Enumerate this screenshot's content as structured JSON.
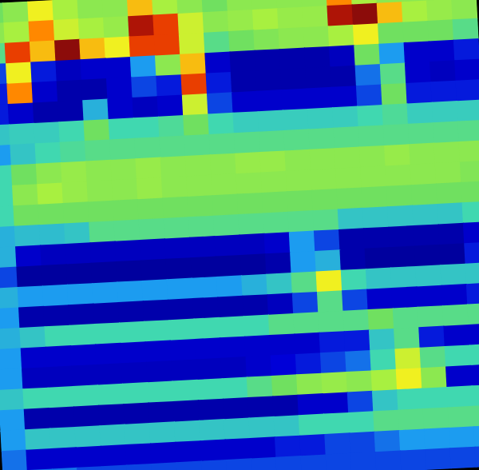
{
  "chart_data": {
    "type": "heatmap",
    "tick_labels": false,
    "zlim": [
      0,
      1
    ],
    "cells": [
      [
        0.55,
        0.6,
        0.75,
        0.65,
        0.6,
        0.6,
        0.8,
        0.65,
        0.6,
        0.55,
        0.6,
        0.6,
        0.6,
        0.6,
        0.85,
        0.65,
        0.6,
        0.6,
        0.6,
        0.6
      ],
      [
        0.6,
        0.65,
        0.85,
        0.7,
        0.65,
        0.62,
        0.95,
        0.9,
        0.7,
        0.6,
        0.62,
        0.65,
        0.62,
        0.62,
        0.95,
        0.97,
        0.8,
        0.65,
        0.62,
        0.6
      ],
      [
        0.5,
        0.9,
        0.8,
        0.97,
        0.8,
        0.75,
        0.9,
        0.9,
        0.7,
        0.5,
        0.55,
        0.58,
        0.6,
        0.6,
        0.65,
        0.75,
        0.55,
        0.55,
        0.55,
        0.5
      ],
      [
        0.2,
        0.75,
        0.15,
        0.08,
        0.1,
        0.1,
        0.3,
        0.6,
        0.8,
        0.1,
        0.05,
        0.05,
        0.05,
        0.05,
        0.08,
        0.55,
        0.3,
        0.1,
        0.1,
        0.15
      ],
      [
        0.15,
        0.85,
        0.1,
        0.05,
        0.05,
        0.1,
        0.2,
        0.15,
        0.9,
        0.15,
        0.05,
        0.05,
        0.05,
        0.05,
        0.05,
        0.25,
        0.5,
        0.1,
        0.08,
        0.1
      ],
      [
        0.15,
        0.1,
        0.05,
        0.05,
        0.35,
        0.1,
        0.08,
        0.1,
        0.7,
        0.2,
        0.1,
        0.1,
        0.1,
        0.1,
        0.1,
        0.2,
        0.55,
        0.15,
        0.15,
        0.15
      ],
      [
        0.4,
        0.42,
        0.42,
        0.45,
        0.55,
        0.45,
        0.45,
        0.48,
        0.55,
        0.45,
        0.42,
        0.42,
        0.42,
        0.42,
        0.42,
        0.45,
        0.48,
        0.42,
        0.42,
        0.42
      ],
      [
        0.3,
        0.4,
        0.45,
        0.48,
        0.5,
        0.5,
        0.5,
        0.5,
        0.5,
        0.5,
        0.5,
        0.5,
        0.5,
        0.5,
        0.5,
        0.5,
        0.5,
        0.5,
        0.5,
        0.5
      ],
      [
        0.45,
        0.55,
        0.6,
        0.62,
        0.6,
        0.6,
        0.62,
        0.6,
        0.6,
        0.6,
        0.62,
        0.62,
        0.6,
        0.6,
        0.6,
        0.6,
        0.62,
        0.6,
        0.6,
        0.6
      ],
      [
        0.45,
        0.6,
        0.65,
        0.62,
        0.6,
        0.6,
        0.62,
        0.6,
        0.6,
        0.6,
        0.6,
        0.6,
        0.6,
        0.6,
        0.6,
        0.6,
        0.6,
        0.6,
        0.6,
        0.58
      ],
      [
        0.45,
        0.55,
        0.55,
        0.55,
        0.55,
        0.55,
        0.55,
        0.55,
        0.55,
        0.55,
        0.55,
        0.55,
        0.55,
        0.55,
        0.55,
        0.55,
        0.55,
        0.55,
        0.55,
        0.55
      ],
      [
        0.35,
        0.38,
        0.38,
        0.4,
        0.5,
        0.5,
        0.5,
        0.5,
        0.5,
        0.5,
        0.5,
        0.5,
        0.5,
        0.5,
        0.4,
        0.4,
        0.4,
        0.4,
        0.4,
        0.45
      ],
      [
        0.35,
        0.1,
        0.08,
        0.08,
        0.08,
        0.08,
        0.08,
        0.08,
        0.08,
        0.08,
        0.08,
        0.1,
        0.3,
        0.2,
        0.05,
        0.05,
        0.05,
        0.05,
        0.05,
        0.1
      ],
      [
        0.2,
        0.03,
        0.03,
        0.03,
        0.03,
        0.03,
        0.03,
        0.03,
        0.03,
        0.03,
        0.03,
        0.05,
        0.3,
        0.35,
        0.05,
        0.03,
        0.03,
        0.03,
        0.03,
        0.15
      ],
      [
        0.35,
        0.3,
        0.3,
        0.3,
        0.3,
        0.3,
        0.3,
        0.3,
        0.3,
        0.3,
        0.35,
        0.4,
        0.5,
        0.75,
        0.45,
        0.4,
        0.4,
        0.4,
        0.4,
        0.4
      ],
      [
        0.3,
        0.05,
        0.05,
        0.05,
        0.05,
        0.05,
        0.05,
        0.05,
        0.05,
        0.05,
        0.05,
        0.08,
        0.2,
        0.5,
        0.2,
        0.1,
        0.1,
        0.1,
        0.1,
        0.15
      ],
      [
        0.35,
        0.4,
        0.45,
        0.45,
        0.45,
        0.45,
        0.45,
        0.45,
        0.45,
        0.45,
        0.45,
        0.5,
        0.5,
        0.5,
        0.5,
        0.55,
        0.5,
        0.5,
        0.5,
        0.5
      ],
      [
        0.3,
        0.1,
        0.1,
        0.1,
        0.1,
        0.1,
        0.1,
        0.1,
        0.1,
        0.1,
        0.1,
        0.1,
        0.1,
        0.15,
        0.15,
        0.4,
        0.5,
        0.15,
        0.1,
        0.1
      ],
      [
        0.3,
        0.08,
        0.08,
        0.08,
        0.08,
        0.08,
        0.08,
        0.08,
        0.08,
        0.08,
        0.1,
        0.12,
        0.15,
        0.2,
        0.25,
        0.45,
        0.7,
        0.5,
        0.45,
        0.45
      ],
      [
        0.4,
        0.45,
        0.45,
        0.45,
        0.45,
        0.45,
        0.45,
        0.45,
        0.45,
        0.45,
        0.5,
        0.55,
        0.6,
        0.62,
        0.6,
        0.65,
        0.75,
        0.6,
        0.1,
        0.1
      ],
      [
        0.3,
        0.05,
        0.05,
        0.05,
        0.05,
        0.05,
        0.05,
        0.05,
        0.05,
        0.05,
        0.05,
        0.05,
        0.1,
        0.1,
        0.2,
        0.4,
        0.45,
        0.45,
        0.45,
        0.45
      ],
      [
        0.3,
        0.4,
        0.4,
        0.4,
        0.4,
        0.4,
        0.4,
        0.4,
        0.4,
        0.4,
        0.4,
        0.4,
        0.45,
        0.45,
        0.45,
        0.5,
        0.5,
        0.5,
        0.5,
        0.5
      ],
      [
        0.25,
        0.1,
        0.1,
        0.1,
        0.1,
        0.1,
        0.1,
        0.1,
        0.1,
        0.1,
        0.1,
        0.15,
        0.15,
        0.2,
        0.2,
        0.25,
        0.3,
        0.3,
        0.3,
        0.3
      ],
      [
        0.3,
        0.25,
        0.25,
        0.2,
        0.2,
        0.2,
        0.2,
        0.2,
        0.2,
        0.2,
        0.2,
        0.2,
        0.2,
        0.2,
        0.2,
        0.2,
        0.2,
        0.2,
        0.2,
        0.2
      ]
    ]
  }
}
